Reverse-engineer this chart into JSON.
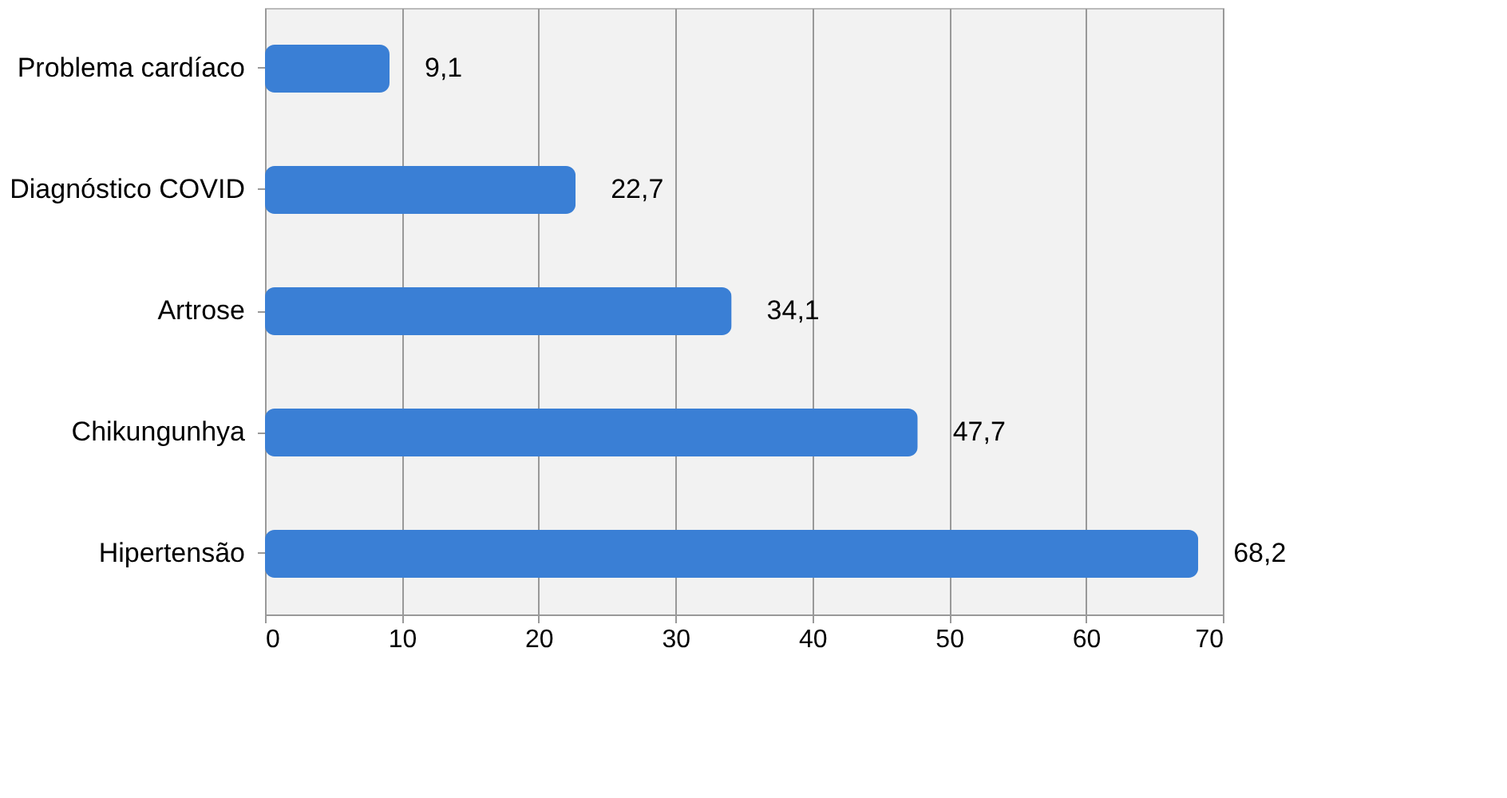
{
  "chart_data": {
    "type": "bar",
    "orientation": "horizontal",
    "categories": [
      "Problema cardíaco",
      "Diagnóstico COVID",
      "Artrose",
      "Chikungunhya",
      "Hipertensão"
    ],
    "values": [
      9.1,
      22.7,
      34.1,
      47.7,
      68.2
    ],
    "value_labels": [
      "9,1",
      "22,7",
      "34,1",
      "47,7",
      "68,2"
    ],
    "color": "#3a7fd5",
    "xlim": [
      0,
      70
    ],
    "xticks": [
      0,
      10,
      20,
      30,
      40,
      50,
      60,
      70
    ],
    "grid": "x"
  }
}
